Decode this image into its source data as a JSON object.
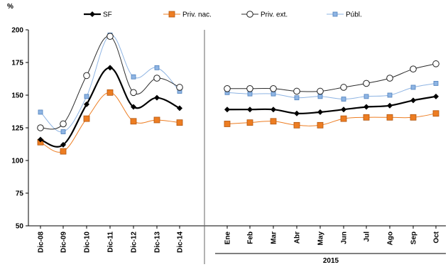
{
  "chart_data": {
    "type": "line",
    "ylabel": "%",
    "ylim": [
      50,
      200
    ],
    "yticks": [
      "50",
      "75",
      "100",
      "125",
      "150",
      "175",
      "200"
    ],
    "grid": false,
    "legend_position": "top",
    "year_label": "2015",
    "categories": [
      "Dic-08",
      "Dic-09",
      "Dic-10",
      "Dic-11",
      "Dic-12",
      "Dic-13",
      "Dic-14",
      "Ene",
      "Feb",
      "Mar",
      "Abr",
      "May",
      "Jun",
      "Jul",
      "Ago",
      "Sep",
      "Oct"
    ],
    "series": [
      {
        "name": "SF",
        "color": "#000000",
        "marker": "diamond",
        "values": [
          116,
          112,
          143,
          171,
          141,
          148,
          140,
          139,
          139,
          139,
          136,
          137,
          139,
          141,
          142,
          146,
          149
        ]
      },
      {
        "name": "Priv. nac.",
        "color": "#ED7D22",
        "marker": "square-filled",
        "values": [
          114,
          107,
          132,
          152,
          130,
          131,
          129,
          128,
          129,
          130,
          127,
          127,
          132,
          133,
          133,
          133,
          136
        ]
      },
      {
        "name": "Priv. ext.",
        "color": "#2B2B2B",
        "marker": "circle-open",
        "values": [
          125,
          128,
          165,
          195,
          152,
          163,
          156,
          155,
          155,
          155,
          153,
          153,
          156,
          159,
          163,
          170,
          174
        ]
      },
      {
        "name": "Públ.",
        "color": "#8EB4E3",
        "marker": "square-small",
        "values": [
          137,
          122,
          149,
          196,
          164,
          171,
          153,
          152,
          151,
          151,
          148,
          149,
          147,
          149,
          150,
          156,
          159
        ]
      }
    ]
  }
}
